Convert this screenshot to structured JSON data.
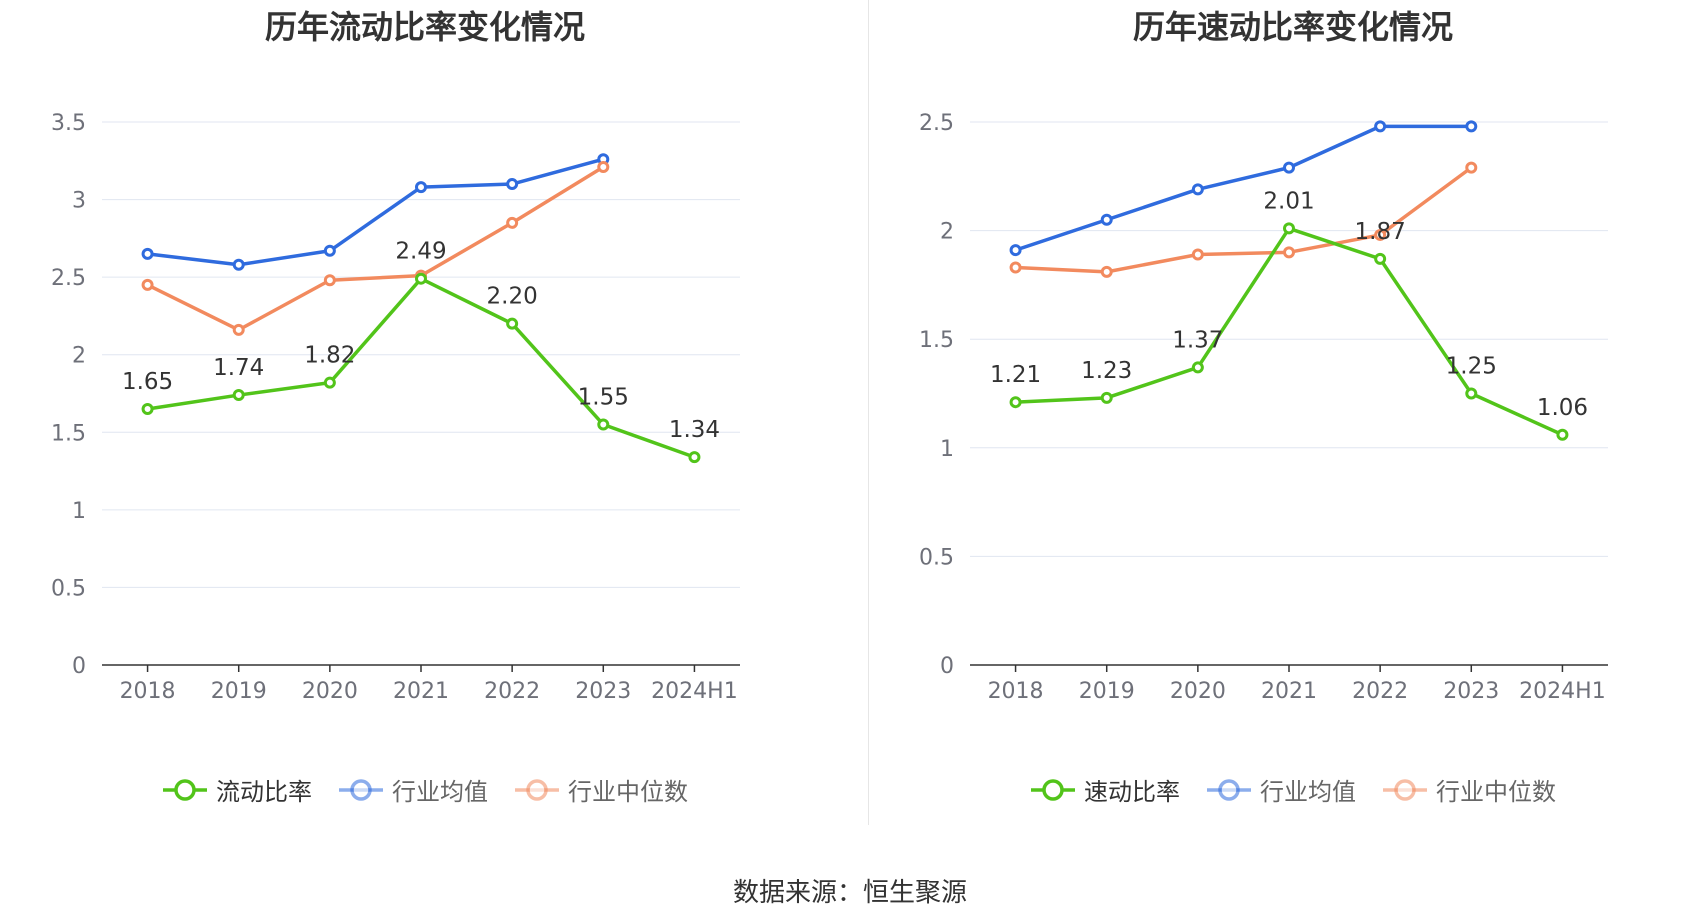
{
  "source": "数据来源：恒生聚源",
  "colors": {
    "primary": "#52c41a",
    "avg": "#2f6bde",
    "median": "#f28a5e",
    "axis": "#333333",
    "grid": "#e0e6f1"
  },
  "chart_data": [
    {
      "type": "line",
      "title": "历年流动比率变化情况",
      "categories": [
        "2018",
        "2019",
        "2020",
        "2021",
        "2022",
        "2023",
        "2024H1"
      ],
      "ylim": [
        0,
        3.5
      ],
      "yticks": [
        "0",
        "0.5",
        "1",
        "1.5",
        "2",
        "2.5",
        "3",
        "3.5"
      ],
      "grid": true,
      "legend": "bottom",
      "series": [
        {
          "name": "流动比率",
          "key": "primary",
          "values": [
            1.65,
            1.74,
            1.82,
            2.49,
            2.2,
            1.55,
            1.34
          ],
          "labels": [
            "1.65",
            "1.74",
            "1.82",
            "2.49",
            "2.20",
            "1.55",
            "1.34"
          ]
        },
        {
          "name": "行业均值",
          "key": "avg",
          "values": [
            2.65,
            2.58,
            2.67,
            3.08,
            3.1,
            3.26,
            null
          ]
        },
        {
          "name": "行业中位数",
          "key": "median",
          "values": [
            2.45,
            2.16,
            2.48,
            2.51,
            2.85,
            3.21,
            null
          ]
        }
      ]
    },
    {
      "type": "line",
      "title": "历年速动比率变化情况",
      "categories": [
        "2018",
        "2019",
        "2020",
        "2021",
        "2022",
        "2023",
        "2024H1"
      ],
      "ylim": [
        0,
        2.5
      ],
      "yticks": [
        "0",
        "0.5",
        "1",
        "1.5",
        "2",
        "2.5"
      ],
      "grid": true,
      "legend": "bottom",
      "series": [
        {
          "name": "速动比率",
          "key": "primary",
          "values": [
            1.21,
            1.23,
            1.37,
            2.01,
            1.87,
            1.25,
            1.06
          ],
          "labels": [
            "1.21",
            "1.23",
            "1.37",
            "2.01",
            "1.87",
            "1.25",
            "1.06"
          ]
        },
        {
          "name": "行业均值",
          "key": "avg",
          "values": [
            1.91,
            2.05,
            2.19,
            2.29,
            2.48,
            2.48,
            null
          ]
        },
        {
          "name": "行业中位数",
          "key": "median",
          "values": [
            1.83,
            1.81,
            1.89,
            1.9,
            1.98,
            2.29,
            null
          ]
        }
      ]
    }
  ]
}
